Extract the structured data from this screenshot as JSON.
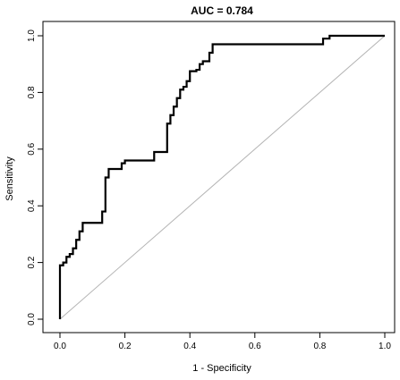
{
  "chart_data": {
    "type": "line",
    "title": "AUC = 0.784",
    "xlabel": "1 - Specificity",
    "ylabel": "Sensitivity",
    "xlim": [
      0,
      1
    ],
    "ylim": [
      0,
      1
    ],
    "x_ticks": [
      "0.0",
      "0.2",
      "0.4",
      "0.6",
      "0.8",
      "1.0"
    ],
    "y_ticks": [
      "0.0",
      "0.2",
      "0.4",
      "0.6",
      "0.8",
      "1.0"
    ],
    "grid": false,
    "legend": "none",
    "series": [
      {
        "color": "#000000",
        "x": [
          0,
          0,
          0.01,
          0.01,
          0.02,
          0.02,
          0.03,
          0.03,
          0.04,
          0.04,
          0.05,
          0.05,
          0.06,
          0.06,
          0.07,
          0.07,
          0.13,
          0.13,
          0.14,
          0.14,
          0.15,
          0.15,
          0.19,
          0.19,
          0.2,
          0.2,
          0.29,
          0.29,
          0.33,
          0.33,
          0.34,
          0.34,
          0.35,
          0.35,
          0.36,
          0.36,
          0.37,
          0.37,
          0.38,
          0.38,
          0.39,
          0.39,
          0.4,
          0.4,
          0.42,
          0.42,
          0.43,
          0.43,
          0.44,
          0.44,
          0.46,
          0.46,
          0.47,
          0.47,
          0.81,
          0.81,
          0.83,
          0.83,
          1.0
        ],
        "y": [
          0,
          0.19,
          0.19,
          0.2,
          0.2,
          0.22,
          0.22,
          0.23,
          0.23,
          0.25,
          0.25,
          0.28,
          0.28,
          0.31,
          0.31,
          0.34,
          0.34,
          0.38,
          0.38,
          0.5,
          0.5,
          0.53,
          0.53,
          0.55,
          0.55,
          0.56,
          0.56,
          0.59,
          0.59,
          0.69,
          0.69,
          0.72,
          0.72,
          0.75,
          0.75,
          0.78,
          0.78,
          0.81,
          0.81,
          0.82,
          0.82,
          0.84,
          0.84,
          0.875,
          0.875,
          0.88,
          0.88,
          0.9,
          0.9,
          0.91,
          0.91,
          0.94,
          0.94,
          0.97,
          0.97,
          0.99,
          0.99,
          1.0,
          1.0
        ]
      },
      {
        "color": "#b4b4b4",
        "x": [
          0,
          1
        ],
        "y": [
          0,
          1
        ]
      }
    ]
  }
}
